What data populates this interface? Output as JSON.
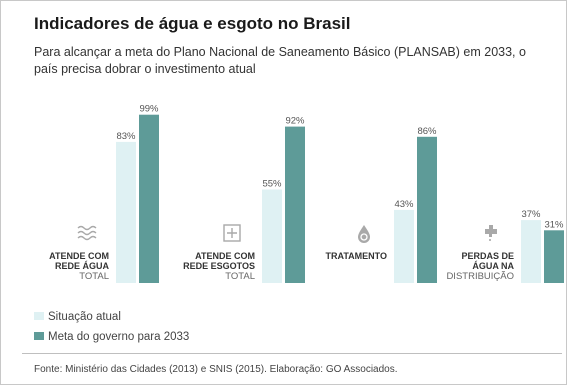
{
  "title": "Indicadores de água e esgoto no Brasil",
  "subtitle": "Para alcançar a meta do Plano Nacional de Saneamento Básico (PLANSAB) em 2033, o país precisa dobrar o investimento atual",
  "source": "Fonte: Ministério das Cidades (2013) e SNIS (2015). Elaboração: GO Associados.",
  "colors": {
    "atual": "#dff1f3",
    "meta": "#5e9b98",
    "icon": "#a9a9a9",
    "label_bold": "#333333"
  },
  "chart_data": {
    "type": "bar",
    "title": "",
    "xlabel": "",
    "ylabel": "",
    "ylim": [
      0,
      100
    ],
    "grid": false,
    "legend_placement": "bottom-left",
    "categories": [
      {
        "bold": [
          "ATENDE COM",
          "REDE ÁGUA"
        ],
        "light": [
          "TOTAL"
        ],
        "icon": "waves-icon"
      },
      {
        "bold": [
          "ATENDE COM",
          "REDE ESGOTOS"
        ],
        "light": [
          "TOTAL"
        ],
        "icon": "plus-box-icon"
      },
      {
        "bold": [
          "TRATAMENTO"
        ],
        "light": [],
        "icon": "water-drop-icon"
      },
      {
        "bold": [
          "PERDAS DE",
          "ÁGUA NA"
        ],
        "light": [
          "DISTRIBUIÇÃO"
        ],
        "icon": "faucet-icon"
      }
    ],
    "series": [
      {
        "name": "Situação atual",
        "values": [
          83,
          55,
          43,
          37
        ],
        "labels": [
          "83%",
          "55%",
          "43%",
          "37%"
        ]
      },
      {
        "name": "Meta do governo para 2033",
        "values": [
          99,
          92,
          86,
          31
        ],
        "labels": [
          "99%",
          "92%",
          "86%",
          "31%"
        ]
      }
    ]
  }
}
